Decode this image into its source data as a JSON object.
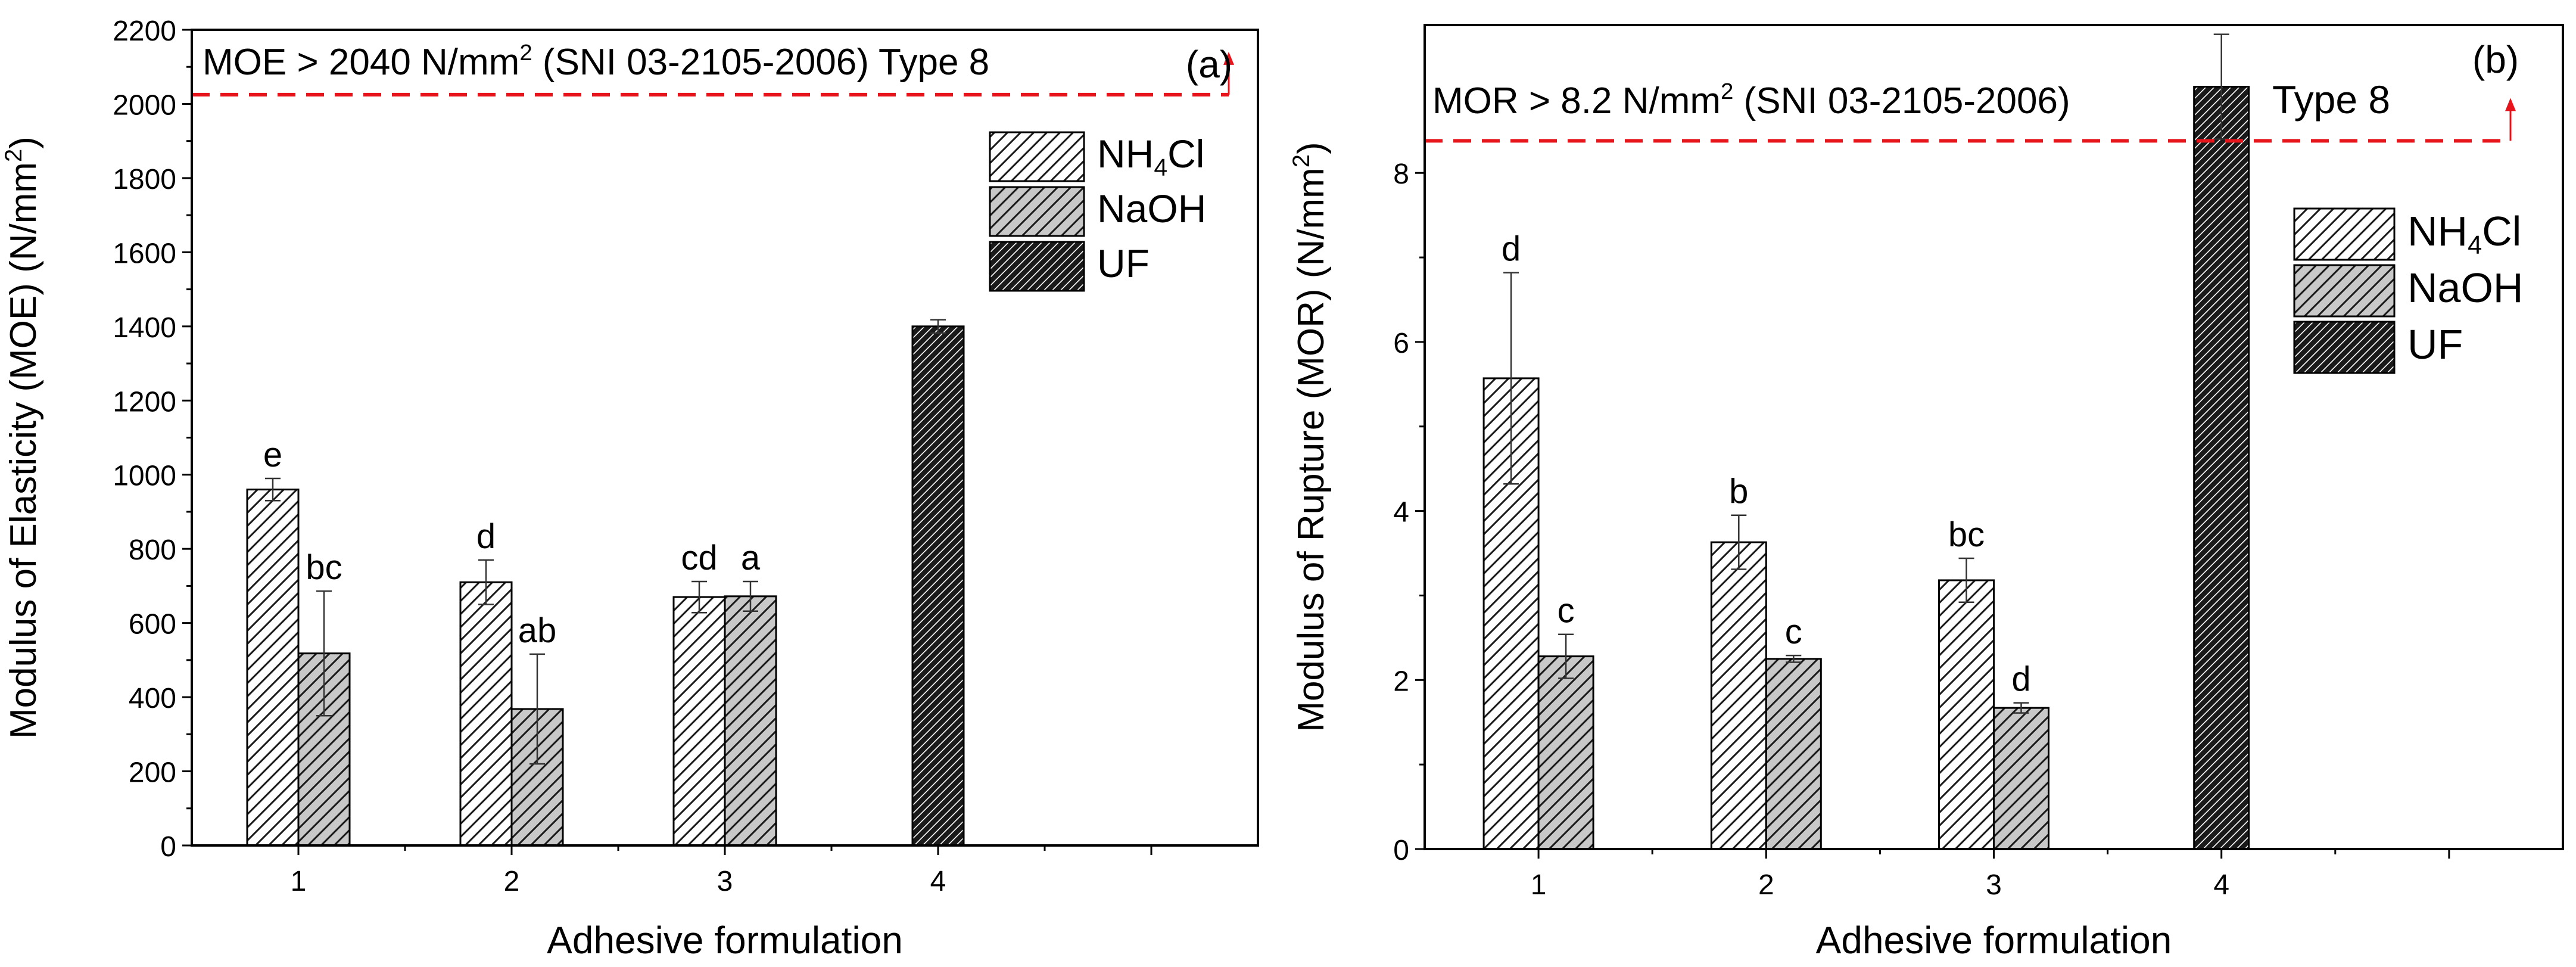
{
  "chart_data": [
    {
      "type": "bar",
      "panel_label": "(a)",
      "title": "",
      "xlabel": "Adhesive formulation",
      "ylabel_parts": [
        "Modulus of Elasticity (MOE) (N/mm",
        "2",
        ")"
      ],
      "ylim": [
        0,
        2200
      ],
      "yticks": [
        0,
        200,
        400,
        600,
        800,
        1000,
        1200,
        1400,
        1600,
        1800,
        2000,
        2200
      ],
      "xlim": [
        0.5,
        5.5
      ],
      "xticks": [
        1,
        2,
        3,
        4
      ],
      "series": [
        {
          "name": "NH4Cl",
          "legend_base": "NH",
          "legend_sub": "4",
          "legend_tail": "Cl",
          "x": [
            1,
            2,
            3
          ],
          "values": [
            960,
            710,
            670
          ],
          "errors": [
            30,
            60,
            42
          ],
          "letters": [
            "e",
            "d",
            "cd"
          ],
          "pattern": "hatch-light",
          "color": "#ffffff"
        },
        {
          "name": "NaOH",
          "legend_base": "NaOH",
          "legend_sub": "",
          "legend_tail": "",
          "x": [
            1,
            2,
            3
          ],
          "values": [
            518,
            368,
            672
          ],
          "errors": [
            168,
            148,
            40
          ],
          "letters": [
            "bc",
            "ab",
            "a"
          ],
          "pattern": "hatch-gray",
          "color": "#c8c8c8"
        },
        {
          "name": "UF",
          "legend_base": "UF",
          "legend_sub": "",
          "legend_tail": "",
          "x": [
            4
          ],
          "values": [
            1400
          ],
          "errors": [
            18
          ],
          "letters": [
            ""
          ],
          "pattern": "hatch-dark",
          "color": "#1a1a1a"
        }
      ],
      "threshold": {
        "value": 2025,
        "color": "#e8141c"
      },
      "annotation_parts": [
        "MOE > 2040 N/mm",
        "2",
        " (SNI 03-2105-2006) Type 8"
      ],
      "annotation2": ""
    },
    {
      "type": "bar",
      "panel_label": "(b)",
      "title": "",
      "xlabel": "Adhesive formulation",
      "ylabel_parts": [
        "Modulus of Rupture (MOR) (N/mm",
        "2",
        ")"
      ],
      "ylim": [
        0,
        9.75
      ],
      "yticks": [
        0,
        2,
        4,
        6,
        8
      ],
      "xlim": [
        0.5,
        5.5
      ],
      "xticks": [
        1,
        2,
        3,
        4
      ],
      "series": [
        {
          "name": "NH4Cl",
          "legend_base": "NH",
          "legend_sub": "4",
          "legend_tail": "Cl",
          "x": [
            1,
            2,
            3
          ],
          "values": [
            5.57,
            3.63,
            3.18
          ],
          "errors": [
            1.25,
            0.32,
            0.26
          ],
          "letters": [
            "d",
            "b",
            "bc"
          ],
          "pattern": "hatch-light",
          "color": "#ffffff"
        },
        {
          "name": "NaOH",
          "legend_base": "NaOH",
          "legend_sub": "",
          "legend_tail": "",
          "x": [
            1,
            2,
            3
          ],
          "values": [
            2.28,
            2.25,
            1.67
          ],
          "errors": [
            0.26,
            0.04,
            0.06
          ],
          "letters": [
            "c",
            "c",
            "d"
          ],
          "pattern": "hatch-gray",
          "color": "#c8c8c8"
        },
        {
          "name": "UF",
          "legend_base": "UF",
          "legend_sub": "",
          "legend_tail": "",
          "x": [
            4
          ],
          "values": [
            9.02
          ],
          "errors": [
            0.62
          ],
          "letters": [
            ""
          ],
          "pattern": "hatch-dark",
          "color": "#1a1a1a"
        }
      ],
      "threshold": {
        "value": 8.38,
        "color": "#e8141c"
      },
      "annotation_parts": [
        "MOR > 8.2 N/mm",
        "2",
        " (SNI 03-2105-2006)"
      ],
      "annotation2": "Type 8"
    }
  ]
}
